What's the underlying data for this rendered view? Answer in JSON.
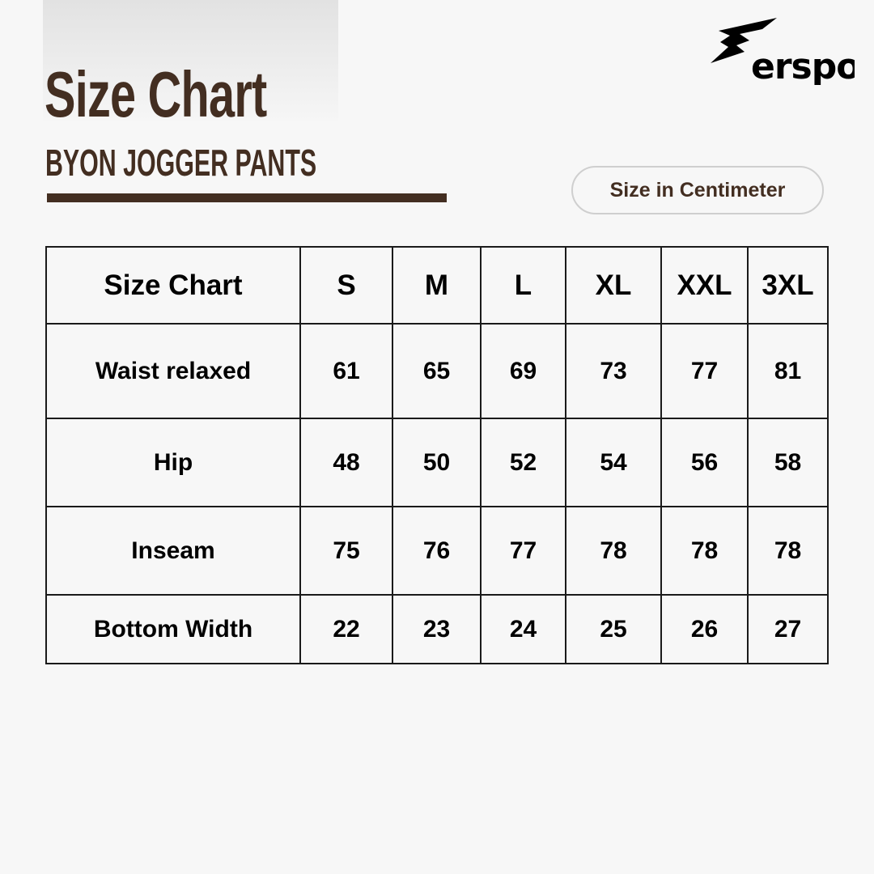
{
  "header": {
    "title": "Size Chart",
    "subtitle": "BYON JOGGER PANTS",
    "unit_label": "Size in Centimeter"
  },
  "brand": {
    "logo_text": "erspo",
    "logo_color": "#000000"
  },
  "colors": {
    "accent": "#432e21",
    "background": "#f7f7f7"
  },
  "table": {
    "header": [
      "Size Chart",
      "S",
      "M",
      "L",
      "XL",
      "XXL",
      "3XL"
    ],
    "rows": [
      {
        "label": "Waist relaxed",
        "values": [
          "61",
          "65",
          "69",
          "73",
          "77",
          "81"
        ]
      },
      {
        "label": "Hip",
        "values": [
          "48",
          "50",
          "52",
          "54",
          "56",
          "58"
        ]
      },
      {
        "label": "Inseam",
        "values": [
          "75",
          "76",
          "77",
          "78",
          "78",
          "78"
        ]
      },
      {
        "label": "Bottom Width",
        "values": [
          "22",
          "23",
          "24",
          "25",
          "26",
          "27"
        ]
      }
    ]
  }
}
